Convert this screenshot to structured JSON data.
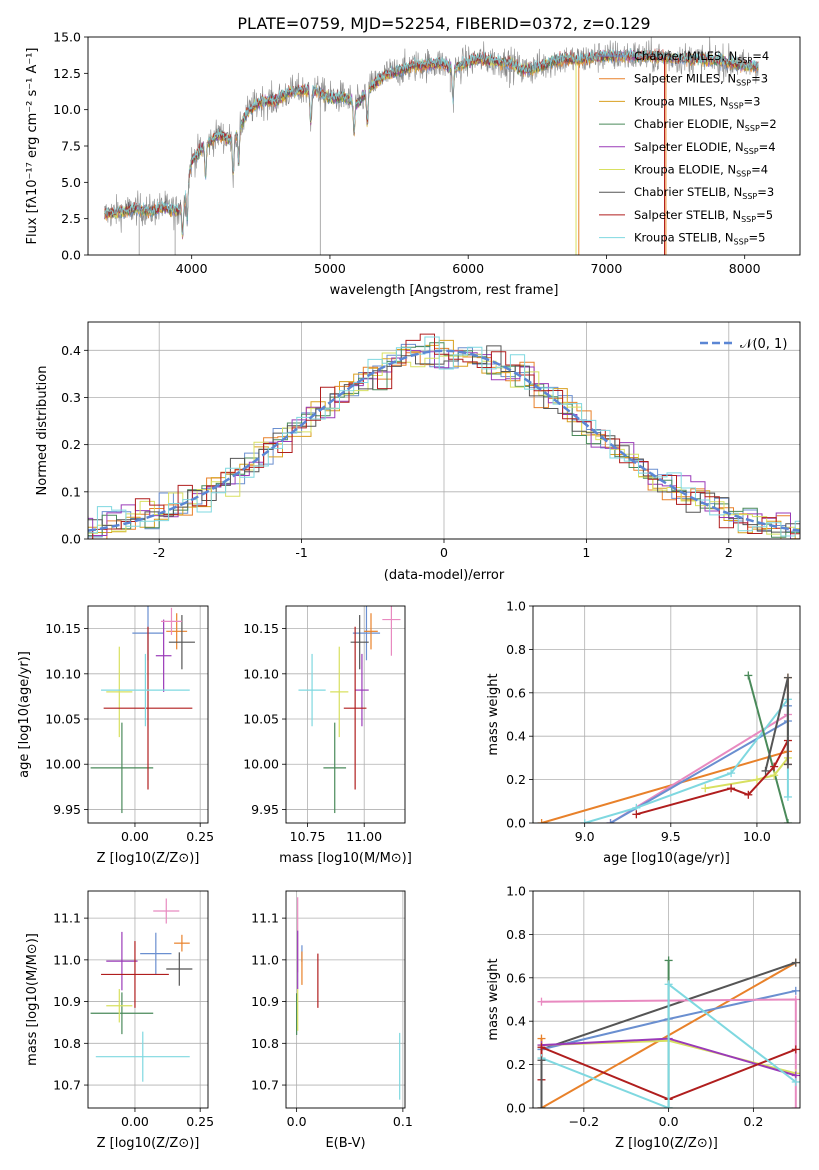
{
  "figure_title": "PLATE=0759, MJD=52254, FIBERID=0372, z=0.129",
  "colors": {
    "Chabrier MILES": "#6a8fd0",
    "Salpeter MILES": "#e8812a",
    "Kroupa MILES": "#d9a020",
    "Chabrier ELODIE": "#4a8a5a",
    "Salpeter ELODIE": "#9a3ab8",
    "Kroupa ELODIE": "#d8e060",
    "Chabrier STELIB": "#555555",
    "Salpeter STELIB": "#b01e1e",
    "Kroupa STELIB": "#7fd8e0",
    "Pink": "#e88ac0"
  },
  "chart_data": [
    {
      "id": "spectrum",
      "type": "line",
      "title": "PLATE=0759, MJD=52254, FIBERID=0372, z=0.129",
      "xlabel": "wavelength [Angstrom, rest frame]",
      "ylabel": "Flux [fλ10⁻¹⁷ erg cm⁻² s⁻¹ A⁻¹]",
      "xlim": [
        3250,
        8400
      ],
      "ylim": [
        0,
        15
      ],
      "xticks": [
        4000,
        5000,
        6000,
        7000,
        8000
      ],
      "yticks": [
        0.0,
        2.5,
        5.0,
        7.5,
        10.0,
        12.5,
        15.0
      ],
      "grid": false,
      "legend_position": "right",
      "continuum": {
        "x": [
          3370,
          3500,
          3600,
          3700,
          3800,
          3900,
          3950,
          4000,
          4100,
          4200,
          4300,
          4400,
          4500,
          4600,
          4700,
          4800,
          4900,
          5000,
          5100,
          5200,
          5300,
          5400,
          5500,
          5600,
          5700,
          5800,
          5900,
          6000,
          6100,
          6200,
          6300,
          6400,
          6500,
          6600,
          6700,
          6800,
          6900,
          7000,
          7200,
          7400,
          7600,
          7800,
          8000,
          8100
        ],
        "y": [
          2.8,
          3.0,
          3.2,
          3.0,
          3.3,
          3.0,
          3.8,
          6.5,
          7.6,
          8.3,
          7.8,
          9.8,
          10.6,
          10.6,
          11.2,
          11.3,
          11.3,
          10.8,
          10.9,
          10.4,
          11.6,
          12.4,
          12.7,
          13.0,
          13.1,
          13.2,
          12.8,
          13.3,
          13.5,
          13.3,
          13.2,
          12.7,
          12.9,
          13.3,
          13.5,
          13.4,
          13.6,
          13.7,
          13.7,
          13.6,
          13.5,
          13.4,
          13.0,
          13.0
        ]
      },
      "series": [
        {
          "name": "Chabrier MILES",
          "nssp": "4"
        },
        {
          "name": "Salpeter MILES",
          "nssp": "3"
        },
        {
          "name": "Kroupa MILES",
          "nssp": "3"
        },
        {
          "name": "Chabrier ELODIE",
          "nssp": "2"
        },
        {
          "name": "Salpeter ELODIE",
          "nssp": "4"
        },
        {
          "name": "Kroupa ELODIE",
          "nssp": "4"
        },
        {
          "name": "Chabrier STELIB",
          "nssp": "3"
        },
        {
          "name": "Salpeter STELIB",
          "nssp": "5"
        },
        {
          "name": "Kroupa STELIB",
          "nssp": "5"
        }
      ]
    },
    {
      "id": "residuals",
      "type": "bar",
      "xlabel": "(data-model)/error",
      "ylabel": "Normed distribution",
      "xlim": [
        -2.5,
        2.5
      ],
      "ylim": [
        0,
        0.46
      ],
      "xticks": [
        -2,
        -1,
        0,
        1,
        2
      ],
      "yticks": [
        0.0,
        0.1,
        0.2,
        0.3,
        0.4
      ],
      "grid": true,
      "legend": "𝒩(0, 1)",
      "legend_position": "top-right",
      "bin_width": 0.1
    },
    {
      "id": "age_vs_z",
      "type": "scatter",
      "xlabel": "Z [log10(Z/Z⊙)]",
      "ylabel": "age  [log10(age/yr)]",
      "xlim": [
        -0.18,
        0.28
      ],
      "ylim": [
        9.935,
        10.175
      ],
      "xticks": [
        0.0,
        0.25
      ],
      "xticklabels": [
        "0.00",
        "0.25"
      ],
      "yticks": [
        9.95,
        10.0,
        10.05,
        10.1,
        10.15
      ],
      "yticklabels": [
        "9.95",
        "10.00",
        "10.05",
        "10.10",
        "10.15"
      ],
      "grid": true,
      "points": [
        {
          "c": "#6a8fd0",
          "x": 0.05,
          "xe": 0.06,
          "y": 10.145,
          "ye": 0.03
        },
        {
          "c": "#e8812a",
          "x": 0.16,
          "xe": 0.04,
          "y": 10.147,
          "ye": 0.02
        },
        {
          "c": "#4a8a5a",
          "x": -0.05,
          "xe": 0.12,
          "y": 9.996,
          "ye": 0.05
        },
        {
          "c": "#9a3ab8",
          "x": 0.11,
          "xe": 0.03,
          "y": 10.12,
          "ye": 0.04
        },
        {
          "c": "#d8e060",
          "x": -0.06,
          "xe": 0.05,
          "y": 10.08,
          "ye": 0.05
        },
        {
          "c": "#555555",
          "x": 0.18,
          "xe": 0.05,
          "y": 10.135,
          "ye": 0.03
        },
        {
          "c": "#b01e1e",
          "x": 0.05,
          "xe": 0.17,
          "y": 10.062,
          "ye": 0.09
        },
        {
          "c": "#7fd8e0",
          "x": 0.04,
          "xe": 0.17,
          "y": 10.082,
          "ye": 0.04
        },
        {
          "c": "#e88ac0",
          "x": 0.14,
          "xe": 0.04,
          "y": 10.158,
          "ye": 0.015
        }
      ]
    },
    {
      "id": "age_vs_mass",
      "type": "scatter",
      "xlabel": "mass [log10(M/M⊙)]",
      "ylabel": "",
      "xlim": [
        10.655,
        11.18
      ],
      "ylim": [
        9.935,
        10.175
      ],
      "xticks": [
        10.75,
        11.0
      ],
      "xticklabels": [
        "10.75",
        "11.00"
      ],
      "yticks": [
        9.95,
        10.0,
        10.05,
        10.1,
        10.15
      ],
      "yticklabels": [
        "9.95",
        "10.00",
        "10.05",
        "10.10",
        "10.15"
      ],
      "grid": true,
      "points": [
        {
          "c": "#6a8fd0",
          "x": 11.01,
          "xe": 0.06,
          "y": 10.145,
          "ye": 0.03
        },
        {
          "c": "#e8812a",
          "x": 11.03,
          "xe": 0.03,
          "y": 10.147,
          "ye": 0.02
        },
        {
          "c": "#4a8a5a",
          "x": 10.87,
          "xe": 0.05,
          "y": 9.996,
          "ye": 0.05
        },
        {
          "c": "#9a3ab8",
          "x": 10.99,
          "xe": 0.03,
          "y": 10.082,
          "ye": 0.04
        },
        {
          "c": "#d8e060",
          "x": 10.89,
          "xe": 0.04,
          "y": 10.08,
          "ye": 0.05
        },
        {
          "c": "#555555",
          "x": 10.98,
          "xe": 0.04,
          "y": 10.135,
          "ye": 0.03
        },
        {
          "c": "#b01e1e",
          "x": 10.96,
          "xe": 0.05,
          "y": 10.062,
          "ye": 0.09
        },
        {
          "c": "#7fd8e0",
          "x": 10.77,
          "xe": 0.06,
          "y": 10.082,
          "ye": 0.04
        },
        {
          "c": "#e88ac0",
          "x": 11.12,
          "xe": 0.04,
          "y": 10.16,
          "ye": 0.04
        }
      ]
    },
    {
      "id": "mass_weight_vs_age",
      "type": "line",
      "xlabel": "age  [log10(age/yr)]",
      "ylabel": "mass weight",
      "xlim": [
        8.7,
        10.25
      ],
      "ylim": [
        0,
        1
      ],
      "xticks": [
        9.0,
        9.5,
        10.0
      ],
      "xticklabels": [
        "9.0",
        "9.5",
        "10.0"
      ],
      "yticks": [
        0.0,
        0.2,
        0.4,
        0.6,
        0.8,
        1.0
      ],
      "yticklabels": [
        "0.0",
        "0.2",
        "0.4",
        "0.6",
        "0.8",
        "1.0"
      ],
      "grid": true,
      "series": [
        {
          "c": "#e8812a",
          "x": [
            8.75,
            10.18,
            10.18
          ],
          "y": [
            0.0,
            0.33,
            0.67
          ]
        },
        {
          "c": "#e88ac0",
          "x": [
            9.15,
            10.18
          ],
          "y": [
            0.0,
            0.5
          ]
        },
        {
          "c": "#6a8fd0",
          "x": [
            9.15,
            10.18,
            10.18
          ],
          "y": [
            0.0,
            0.47,
            0.54
          ]
        },
        {
          "c": "#7fd8e0",
          "x": [
            9.0,
            9.3,
            9.85,
            10.18,
            10.18
          ],
          "y": [
            0.0,
            0.07,
            0.23,
            0.57,
            0.12
          ]
        },
        {
          "c": "#4a8a5a",
          "x": [
            9.95,
            10.18
          ],
          "y": [
            0.68,
            0.0
          ]
        },
        {
          "c": "#d8e060",
          "x": [
            9.7,
            10.0,
            10.1,
            10.18
          ],
          "y": [
            0.16,
            0.2,
            0.22,
            0.3
          ]
        },
        {
          "c": "#b01e1e",
          "x": [
            9.3,
            9.85,
            9.95,
            10.1,
            10.18,
            10.18
          ],
          "y": [
            0.04,
            0.16,
            0.13,
            0.26,
            0.38,
            0.27
          ]
        },
        {
          "c": "#555555",
          "x": [
            10.05,
            10.18,
            10.18
          ],
          "y": [
            0.24,
            0.67,
            0.27
          ]
        }
      ]
    },
    {
      "id": "mass_vs_z",
      "type": "scatter",
      "xlabel": "Z [log10(Z/Z⊙)]",
      "ylabel": "mass [log10(M/M⊙)]",
      "xlim": [
        -0.18,
        0.28
      ],
      "ylim": [
        10.645,
        11.165
      ],
      "xticks": [
        0.0,
        0.25
      ],
      "xticklabels": [
        "0.00",
        "0.25"
      ],
      "yticks": [
        10.7,
        10.8,
        10.9,
        11.0,
        11.1
      ],
      "yticklabels": [
        "10.7",
        "10.8",
        "10.9",
        "11.0",
        "11.1"
      ],
      "grid": true,
      "points": [
        {
          "c": "#6a8fd0",
          "x": 0.08,
          "xe": 0.06,
          "y": 11.015,
          "ye": 0.05
        },
        {
          "c": "#e8812a",
          "x": 0.18,
          "xe": 0.03,
          "y": 11.04,
          "ye": 0.02
        },
        {
          "c": "#4a8a5a",
          "x": -0.05,
          "xe": 0.12,
          "y": 10.872,
          "ye": 0.05
        },
        {
          "c": "#9a3ab8",
          "x": -0.05,
          "xe": 0.06,
          "y": 10.997,
          "ye": 0.07
        },
        {
          "c": "#d8e060",
          "x": -0.06,
          "xe": 0.05,
          "y": 10.89,
          "ye": 0.04
        },
        {
          "c": "#555555",
          "x": 0.17,
          "xe": 0.05,
          "y": 10.978,
          "ye": 0.04
        },
        {
          "c": "#b01e1e",
          "x": 0.0,
          "xe": 0.13,
          "y": 10.965,
          "ye": 0.08
        },
        {
          "c": "#7fd8e0",
          "x": 0.03,
          "xe": 0.18,
          "y": 10.768,
          "ye": 0.06
        },
        {
          "c": "#e88ac0",
          "x": 0.12,
          "xe": 0.05,
          "y": 11.117,
          "ye": 0.03
        }
      ]
    },
    {
      "id": "mass_vs_ebv",
      "type": "scatter",
      "xlabel": "E(B-V)",
      "ylabel": "",
      "xlim": [
        -0.01,
        0.102
      ],
      "ylim": [
        10.645,
        11.165
      ],
      "xticks": [
        0.0,
        0.1
      ],
      "xticklabels": [
        "0.0",
        "0.1"
      ],
      "yticks": [
        10.7,
        10.8,
        10.9,
        11.0,
        11.1
      ],
      "yticklabels": [
        "10.7",
        "10.8",
        "10.9",
        "11.0",
        "11.1"
      ],
      "grid": true,
      "points": [
        {
          "c": "#e88ac0",
          "x": 0.001,
          "xe": 0,
          "y": 11.06,
          "ye": 0.09
        },
        {
          "c": "#9a3ab8",
          "x": 0.001,
          "xe": 0,
          "y": 11.0,
          "ye": 0.07
        },
        {
          "c": "#4a8a5a",
          "x": 0.0,
          "xe": 0,
          "y": 10.87,
          "ye": 0.05
        },
        {
          "c": "#6a8fd0",
          "x": 0.005,
          "xe": 0,
          "y": 11.015,
          "ye": 0.02
        },
        {
          "c": "#e8812a",
          "x": 0.005,
          "xe": 0,
          "y": 10.98,
          "ye": 0.04
        },
        {
          "c": "#d8e060",
          "x": 0.001,
          "xe": 0,
          "y": 10.88,
          "ye": 0.05
        },
        {
          "c": "#b01e1e",
          "x": 0.02,
          "xe": 0,
          "y": 10.95,
          "ye": 0.065
        },
        {
          "c": "#7fd8e0",
          "x": 0.097,
          "xe": 0,
          "y": 10.745,
          "ye": 0.08
        }
      ]
    },
    {
      "id": "mass_weight_vs_z",
      "type": "line",
      "xlabel": "Z [log10(Z/Z⊙)]",
      "ylabel": "mass weight",
      "xlim": [
        -0.32,
        0.31
      ],
      "ylim": [
        0,
        1
      ],
      "xticks": [
        -0.2,
        0.0,
        0.2
      ],
      "xticklabels": [
        "−0.2",
        "0.0",
        "0.2"
      ],
      "yticks": [
        0.0,
        0.2,
        0.4,
        0.6,
        0.8,
        1.0
      ],
      "yticklabels": [
        "0.0",
        "0.2",
        "0.4",
        "0.6",
        "0.8",
        "1.0"
      ],
      "grid": true,
      "series": [
        {
          "c": "#e8812a",
          "x": [
            -0.3,
            -0.3,
            0.3
          ],
          "y": [
            0.32,
            0.0,
            0.67
          ]
        },
        {
          "c": "#555555",
          "x": [
            -0.3,
            0.3
          ],
          "y": [
            0.27,
            0.67
          ]
        },
        {
          "c": "#6a8fd0",
          "x": [
            -0.3,
            0.0,
            0.3
          ],
          "y": [
            0.27,
            0.41,
            0.54
          ]
        },
        {
          "c": "#e88ac0",
          "x": [
            -0.3,
            0.3,
            0.3
          ],
          "y": [
            0.49,
            0.5,
            0.0
          ]
        },
        {
          "c": "#d8e060",
          "x": [
            -0.3,
            0.0,
            0.3
          ],
          "y": [
            0.29,
            0.31,
            0.16
          ]
        },
        {
          "c": "#9a3ab8",
          "x": [
            -0.3,
            0.0,
            0.3
          ],
          "y": [
            0.29,
            0.32,
            0.15
          ]
        },
        {
          "c": "#b01e1e",
          "x": [
            -0.3,
            -0.3,
            0.0,
            0.3
          ],
          "y": [
            0.13,
            0.28,
            0.04,
            0.27
          ]
        },
        {
          "c": "#4a8a5a",
          "x": [
            0.0,
            0.0
          ],
          "y": [
            0.68,
            0.0
          ]
        },
        {
          "c": "#7fd8e0",
          "x": [
            -0.3,
            0.0,
            0.0,
            0.3
          ],
          "y": [
            0.23,
            0.0,
            0.57,
            0.12
          ]
        },
        {
          "c": "#555555",
          "x": [
            -0.3,
            -0.3
          ],
          "y": [
            0.0,
            0.22
          ]
        }
      ]
    }
  ]
}
